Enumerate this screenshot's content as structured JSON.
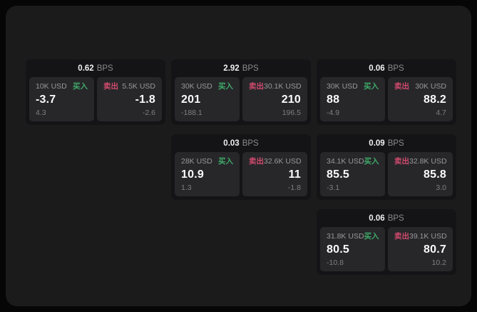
{
  "labels": {
    "bps_unit": "BPS",
    "buy": "买入",
    "sell": "卖出"
  },
  "colors": {
    "buy": "#3fa968",
    "sell": "#d14a6e",
    "panel_bg": "#1b1b1c",
    "card_bg": "#141416",
    "tile_bg": "#27272a"
  },
  "cards": [
    {
      "bps": "0.62",
      "buy": {
        "size": "10K USD",
        "price": "-3.7",
        "delta": "4.3"
      },
      "sell": {
        "size": "5.5K USD",
        "price": "-1.8",
        "delta": "-2.6"
      }
    },
    {
      "bps": "2.92",
      "buy": {
        "size": "30K USD",
        "price": "201",
        "delta": "-188.1"
      },
      "sell": {
        "size": "30.1K USD",
        "price": "210",
        "delta": "196.5"
      }
    },
    {
      "bps": "0.06",
      "buy": {
        "size": "30K USD",
        "price": "88",
        "delta": "-4.9"
      },
      "sell": {
        "size": "30K USD",
        "price": "88.2",
        "delta": "4.7"
      }
    },
    {
      "bps": "0.03",
      "buy": {
        "size": "28K USD",
        "price": "10.9",
        "delta": "1.3"
      },
      "sell": {
        "size": "32.6K USD",
        "price": "11",
        "delta": "-1.8"
      }
    },
    {
      "bps": "0.09",
      "buy": {
        "size": "34.1K USD",
        "price": "85.5",
        "delta": "-3.1"
      },
      "sell": {
        "size": "32.8K USD",
        "price": "85.8",
        "delta": "3.0"
      }
    },
    {
      "bps": "0.06",
      "buy": {
        "size": "31.8K USD",
        "price": "80.5",
        "delta": "-10.8"
      },
      "sell": {
        "size": "39.1K USD",
        "price": "80.7",
        "delta": "10.2"
      }
    }
  ]
}
